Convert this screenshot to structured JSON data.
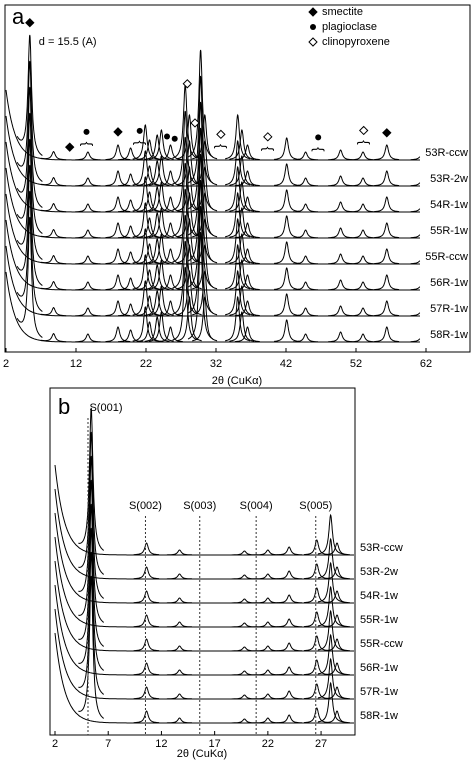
{
  "chart_data": [
    {
      "type": "line",
      "panel": "a",
      "xlabel": "2θ (CuKα)",
      "xlim": [
        2,
        65
      ],
      "xticks": [
        2,
        12,
        22,
        32,
        42,
        52,
        62
      ],
      "annotation": "d = 15.5 (A)",
      "color": "#000000",
      "legend": [
        {
          "name": "smectite",
          "symbol": "filled-diamond"
        },
        {
          "name": "plagioclase",
          "symbol": "dot"
        },
        {
          "name": "clinopyroxene",
          "symbol": "open-diamond"
        }
      ],
      "markers": [
        {
          "x": 5.4,
          "mineral": 0
        },
        {
          "x": 11.1,
          "mineral": 0
        },
        {
          "x": 13.5,
          "mineral": 1,
          "bracket": true
        },
        {
          "x": 18.0,
          "mineral": 0
        },
        {
          "x": 21.1,
          "mineral": 1,
          "bracket": true
        },
        {
          "x": 25.0,
          "mineral": 1
        },
        {
          "x": 26.1,
          "mineral": 1
        },
        {
          "x": 27.9,
          "mineral": 2
        },
        {
          "x": 29.0,
          "mineral": 2
        },
        {
          "x": 32.7,
          "mineral": 2,
          "bracket": true
        },
        {
          "x": 39.4,
          "mineral": 2,
          "bracket": true
        },
        {
          "x": 46.6,
          "mineral": 1,
          "bracket": true
        },
        {
          "x": 53.1,
          "mineral": 2,
          "bracket": true
        },
        {
          "x": 56.4,
          "mineral": 0
        }
      ],
      "samples": [
        "53R-ccw",
        "53R-2w",
        "54R-1w",
        "55R-1w",
        "55R-ccw",
        "56R-1w",
        "57R-1w",
        "58R-1w"
      ],
      "peaks": [
        {
          "x": 5.4,
          "height": 120
        },
        {
          "x": 8.8,
          "height": 8
        },
        {
          "x": 13.7,
          "height": 8
        },
        {
          "x": 18.0,
          "height": 15
        },
        {
          "x": 19.8,
          "height": 12
        },
        {
          "x": 21.9,
          "height": 35
        },
        {
          "x": 22.5,
          "height": 20
        },
        {
          "x": 23.6,
          "height": 25
        },
        {
          "x": 24.2,
          "height": 30
        },
        {
          "x": 25.5,
          "height": 15
        },
        {
          "x": 27.6,
          "height": 75
        },
        {
          "x": 28.2,
          "height": 45
        },
        {
          "x": 29.8,
          "height": 110
        },
        {
          "x": 30.4,
          "height": 45
        },
        {
          "x": 35.1,
          "height": 45
        },
        {
          "x": 35.7,
          "height": 30
        },
        {
          "x": 36.5,
          "height": 15
        },
        {
          "x": 42.1,
          "height": 22
        },
        {
          "x": 44.8,
          "height": 8
        },
        {
          "x": 49.8,
          "height": 10
        },
        {
          "x": 53.0,
          "height": 8
        },
        {
          "x": 56.4,
          "height": 15
        },
        {
          "x": 61.6,
          "height": 12
        }
      ]
    },
    {
      "type": "line",
      "panel": "b",
      "xlabel": "2θ (CuKα)",
      "xlim": [
        2,
        30
      ],
      "xticks": [
        2,
        7,
        12,
        17,
        22,
        27
      ],
      "color": "#000000",
      "reflections": [
        {
          "x": 5.1,
          "label": "S(001)"
        },
        {
          "x": 10.5,
          "label": "S(002)"
        },
        {
          "x": 15.6,
          "label": "S(003)"
        },
        {
          "x": 20.9,
          "label": "S(004)"
        },
        {
          "x": 26.5,
          "label": "S(005)"
        }
      ],
      "samples": [
        "53R-ccw",
        "53R-2w",
        "54R-1w",
        "55R-1w",
        "55R-ccw",
        "56R-1w",
        "57R-1w",
        "58R-1w"
      ],
      "peaks": [
        {
          "x": 5.4,
          "height": 145
        },
        {
          "x": 10.6,
          "height": 12
        },
        {
          "x": 13.7,
          "height": 5
        },
        {
          "x": 19.8,
          "height": 4
        },
        {
          "x": 22.0,
          "height": 5
        },
        {
          "x": 24.0,
          "height": 8
        },
        {
          "x": 26.6,
          "height": 15
        },
        {
          "x": 27.9,
          "height": 40
        },
        {
          "x": 28.5,
          "height": 12
        }
      ]
    }
  ]
}
